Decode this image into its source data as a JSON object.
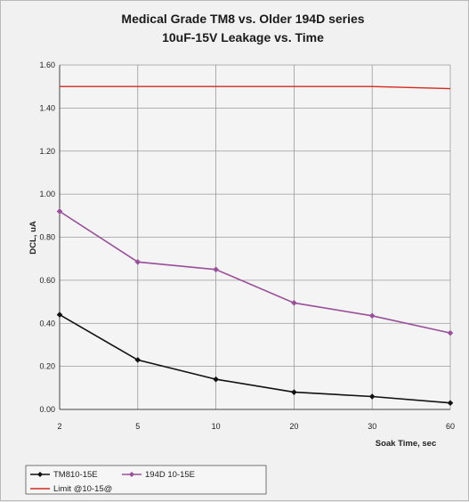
{
  "chart_data": {
    "type": "line",
    "title": "Medical Grade TM8 vs. Older 194D series",
    "subtitle": "10uF-15V    Leakage vs. Time",
    "xlabel": "Soak Time, sec",
    "ylabel": "DCL, uA",
    "categories": [
      "2",
      "5",
      "10",
      "20",
      "30",
      "60"
    ],
    "ylim": [
      0,
      1.6
    ],
    "yticks": [
      "0.00",
      "0.20",
      "0.40",
      "0.60",
      "0.80",
      "1.00",
      "1.20",
      "1.40",
      "1.60"
    ],
    "grid": true,
    "legend_position": "bottom-left",
    "series": [
      {
        "name": "TM810-15E",
        "values": [
          0.44,
          0.23,
          0.14,
          0.08,
          0.06,
          0.03
        ],
        "color": "#111111",
        "marker": "diamond"
      },
      {
        "name": "194D 10-15E",
        "values": [
          0.92,
          0.685,
          0.65,
          0.495,
          0.435,
          0.355
        ],
        "color": "#9a4f9a",
        "marker": "diamond"
      },
      {
        "name": "Limit @10-15@",
        "values": [
          1.5,
          1.5,
          1.5,
          1.5,
          1.5,
          1.49
        ],
        "color": "#d42a1e",
        "marker": "none"
      }
    ]
  }
}
